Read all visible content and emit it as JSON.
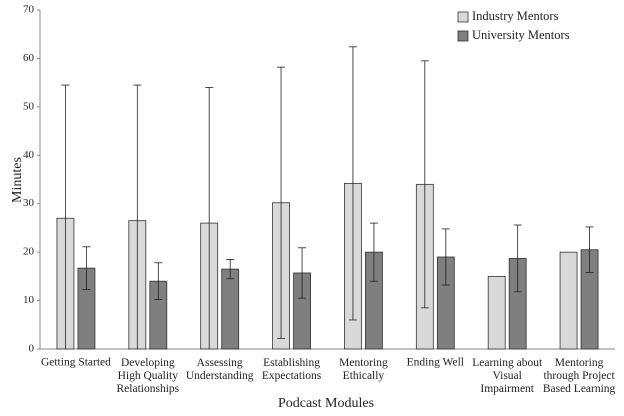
{
  "chart_data": {
    "type": "bar",
    "x_label": "Podcast Modules",
    "y_label": "Minutes",
    "categories": [
      "Getting Started",
      "Developing\nHigh Quality\nRelationships",
      "Assessing\nUnderstanding",
      "Establishing\nExpectations",
      "Mentoring\nEthically",
      "Ending Well",
      "Learning about\nVisual\nImpairment",
      "Mentoring\nthrough Project\nBased Learning"
    ],
    "series": [
      {
        "name": "Industry Mentors",
        "color": "#d9d9d9",
        "values": [
          27,
          26.5,
          26,
          30.2,
          34.2,
          34,
          15,
          20
        ],
        "errors": [
          27.5,
          28,
          28,
          28,
          28.2,
          25.5,
          null,
          null
        ]
      },
      {
        "name": "University Mentors",
        "color": "#7f7f7f",
        "values": [
          16.7,
          14,
          16.5,
          15.7,
          20,
          19,
          18.7,
          20.5
        ],
        "errors": [
          4.4,
          3.8,
          2,
          5.2,
          6,
          5.8,
          6.9,
          4.7
        ]
      }
    ],
    "ylim": [
      0,
      70
    ],
    "yticks": [
      0,
      10,
      20,
      30,
      40,
      50,
      60,
      70
    ],
    "legend": "top-right"
  }
}
